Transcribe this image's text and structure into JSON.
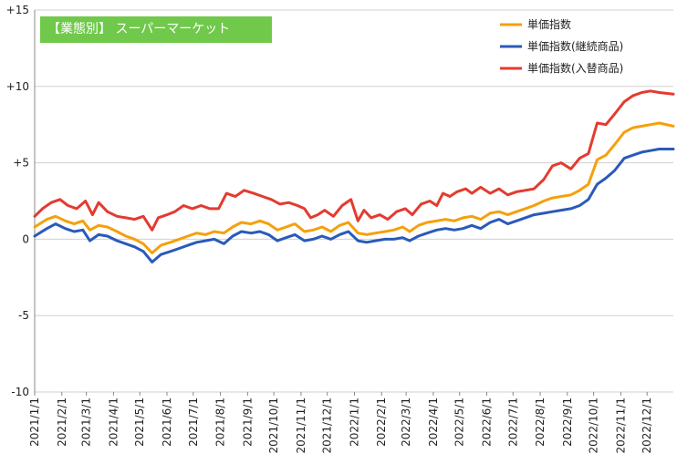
{
  "chart_data": {
    "type": "line",
    "title": "【業態別】 スーパーマーケット",
    "xlabel": "",
    "ylabel": "",
    "ylim": [
      -10,
      15
    ],
    "yticks": [
      {
        "value": 15,
        "label": "+15"
      },
      {
        "value": 10,
        "label": "+10"
      },
      {
        "value": 5,
        "label": "+5"
      },
      {
        "value": 0,
        "label": "0"
      },
      {
        "value": -5,
        "label": "-5"
      },
      {
        "value": -10,
        "label": "-10"
      }
    ],
    "gridlines": "horizontal",
    "legend_position": "top-right",
    "x_start": "2021-01-01",
    "x_end": "2022-12-31",
    "xticks": [
      "2021/1/1",
      "2021/2/1",
      "2021/3/1",
      "2021/4/1",
      "2021/5/1",
      "2021/6/1",
      "2021/7/1",
      "2021/8/1",
      "2021/9/1",
      "2021/10/1",
      "2021/11/1",
      "2021/12/1",
      "2022/1/1",
      "2022/2/1",
      "2022/3/1",
      "2022/4/1",
      "2022/5/1",
      "2022/6/1",
      "2022/7/1",
      "2022/8/1",
      "2022/9/1",
      "2022/10/1",
      "2022/11/1",
      "2022/12/1"
    ],
    "series": [
      {
        "name": "単価指数",
        "color": "#f5a00c",
        "points": [
          [
            "2021-01-01",
            0.8
          ],
          [
            "2021-01-15",
            1.3
          ],
          [
            "2021-01-25",
            1.5
          ],
          [
            "2021-02-05",
            1.2
          ],
          [
            "2021-02-15",
            1.0
          ],
          [
            "2021-02-25",
            1.2
          ],
          [
            "2021-03-05",
            0.6
          ],
          [
            "2021-03-15",
            0.9
          ],
          [
            "2021-03-25",
            0.8
          ],
          [
            "2021-04-05",
            0.5
          ],
          [
            "2021-04-15",
            0.2
          ],
          [
            "2021-04-25",
            0.0
          ],
          [
            "2021-05-05",
            -0.3
          ],
          [
            "2021-05-15",
            -0.9
          ],
          [
            "2021-05-25",
            -0.4
          ],
          [
            "2021-06-05",
            -0.2
          ],
          [
            "2021-06-15",
            0.0
          ],
          [
            "2021-06-25",
            0.2
          ],
          [
            "2021-07-05",
            0.4
          ],
          [
            "2021-07-15",
            0.3
          ],
          [
            "2021-07-25",
            0.5
          ],
          [
            "2021-08-05",
            0.4
          ],
          [
            "2021-08-15",
            0.8
          ],
          [
            "2021-08-25",
            1.1
          ],
          [
            "2021-09-05",
            1.0
          ],
          [
            "2021-09-15",
            1.2
          ],
          [
            "2021-09-25",
            1.0
          ],
          [
            "2021-10-05",
            0.6
          ],
          [
            "2021-10-15",
            0.8
          ],
          [
            "2021-10-25",
            1.0
          ],
          [
            "2021-11-05",
            0.5
          ],
          [
            "2021-11-15",
            0.6
          ],
          [
            "2021-11-25",
            0.8
          ],
          [
            "2021-12-05",
            0.5
          ],
          [
            "2021-12-15",
            0.9
          ],
          [
            "2021-12-25",
            1.1
          ],
          [
            "2022-01-05",
            0.4
          ],
          [
            "2022-01-15",
            0.3
          ],
          [
            "2022-01-25",
            0.4
          ],
          [
            "2022-02-05",
            0.5
          ],
          [
            "2022-02-15",
            0.6
          ],
          [
            "2022-02-25",
            0.8
          ],
          [
            "2022-03-05",
            0.5
          ],
          [
            "2022-03-15",
            0.9
          ],
          [
            "2022-03-25",
            1.1
          ],
          [
            "2022-04-05",
            1.2
          ],
          [
            "2022-04-15",
            1.3
          ],
          [
            "2022-04-25",
            1.2
          ],
          [
            "2022-05-05",
            1.4
          ],
          [
            "2022-05-15",
            1.5
          ],
          [
            "2022-05-25",
            1.3
          ],
          [
            "2022-06-05",
            1.7
          ],
          [
            "2022-06-15",
            1.8
          ],
          [
            "2022-06-25",
            1.6
          ],
          [
            "2022-07-05",
            1.8
          ],
          [
            "2022-07-15",
            2.0
          ],
          [
            "2022-07-25",
            2.2
          ],
          [
            "2022-08-05",
            2.5
          ],
          [
            "2022-08-15",
            2.7
          ],
          [
            "2022-08-25",
            2.8
          ],
          [
            "2022-09-05",
            2.9
          ],
          [
            "2022-09-15",
            3.2
          ],
          [
            "2022-09-25",
            3.6
          ],
          [
            "2022-10-05",
            5.2
          ],
          [
            "2022-10-15",
            5.5
          ],
          [
            "2022-10-25",
            6.2
          ],
          [
            "2022-11-05",
            7.0
          ],
          [
            "2022-11-15",
            7.3
          ],
          [
            "2022-11-25",
            7.4
          ],
          [
            "2022-12-05",
            7.5
          ],
          [
            "2022-12-15",
            7.6
          ],
          [
            "2022-12-31",
            7.4
          ]
        ]
      },
      {
        "name": "単価指数(継続商品)",
        "color": "#2a5ab9",
        "points": [
          [
            "2021-01-01",
            0.2
          ],
          [
            "2021-01-15",
            0.7
          ],
          [
            "2021-01-25",
            1.0
          ],
          [
            "2021-02-05",
            0.7
          ],
          [
            "2021-02-15",
            0.5
          ],
          [
            "2021-02-25",
            0.6
          ],
          [
            "2021-03-05",
            -0.1
          ],
          [
            "2021-03-15",
            0.3
          ],
          [
            "2021-03-25",
            0.2
          ],
          [
            "2021-04-05",
            -0.1
          ],
          [
            "2021-04-15",
            -0.3
          ],
          [
            "2021-04-25",
            -0.5
          ],
          [
            "2021-05-05",
            -0.8
          ],
          [
            "2021-05-15",
            -1.5
          ],
          [
            "2021-05-25",
            -1.0
          ],
          [
            "2021-06-05",
            -0.8
          ],
          [
            "2021-06-15",
            -0.6
          ],
          [
            "2021-06-25",
            -0.4
          ],
          [
            "2021-07-05",
            -0.2
          ],
          [
            "2021-07-15",
            -0.1
          ],
          [
            "2021-07-25",
            0.0
          ],
          [
            "2021-08-05",
            -0.3
          ],
          [
            "2021-08-15",
            0.2
          ],
          [
            "2021-08-25",
            0.5
          ],
          [
            "2021-09-05",
            0.4
          ],
          [
            "2021-09-15",
            0.5
          ],
          [
            "2021-09-25",
            0.3
          ],
          [
            "2021-10-05",
            -0.1
          ],
          [
            "2021-10-15",
            0.1
          ],
          [
            "2021-10-25",
            0.3
          ],
          [
            "2021-11-05",
            -0.1
          ],
          [
            "2021-11-15",
            0.0
          ],
          [
            "2021-11-25",
            0.2
          ],
          [
            "2021-12-05",
            0.0
          ],
          [
            "2021-12-15",
            0.3
          ],
          [
            "2021-12-25",
            0.5
          ],
          [
            "2022-01-05",
            -0.1
          ],
          [
            "2022-01-15",
            -0.2
          ],
          [
            "2022-01-25",
            -0.1
          ],
          [
            "2022-02-05",
            0.0
          ],
          [
            "2022-02-15",
            0.0
          ],
          [
            "2022-02-25",
            0.1
          ],
          [
            "2022-03-05",
            -0.1
          ],
          [
            "2022-03-15",
            0.2
          ],
          [
            "2022-03-25",
            0.4
          ],
          [
            "2022-04-05",
            0.6
          ],
          [
            "2022-04-15",
            0.7
          ],
          [
            "2022-04-25",
            0.6
          ],
          [
            "2022-05-05",
            0.7
          ],
          [
            "2022-05-15",
            0.9
          ],
          [
            "2022-05-25",
            0.7
          ],
          [
            "2022-06-05",
            1.1
          ],
          [
            "2022-06-15",
            1.3
          ],
          [
            "2022-06-25",
            1.0
          ],
          [
            "2022-07-05",
            1.2
          ],
          [
            "2022-07-15",
            1.4
          ],
          [
            "2022-07-25",
            1.6
          ],
          [
            "2022-08-05",
            1.7
          ],
          [
            "2022-08-15",
            1.8
          ],
          [
            "2022-08-25",
            1.9
          ],
          [
            "2022-09-05",
            2.0
          ],
          [
            "2022-09-15",
            2.2
          ],
          [
            "2022-09-25",
            2.6
          ],
          [
            "2022-10-05",
            3.6
          ],
          [
            "2022-10-15",
            4.0
          ],
          [
            "2022-10-25",
            4.5
          ],
          [
            "2022-11-05",
            5.3
          ],
          [
            "2022-11-15",
            5.5
          ],
          [
            "2022-11-25",
            5.7
          ],
          [
            "2022-12-05",
            5.8
          ],
          [
            "2022-12-15",
            5.9
          ],
          [
            "2022-12-31",
            5.9
          ]
        ]
      },
      {
        "name": "単価指数(入替商品)",
        "color": "#e33b30",
        "points": [
          [
            "2021-01-01",
            1.5
          ],
          [
            "2021-01-10",
            2.0
          ],
          [
            "2021-01-20",
            2.4
          ],
          [
            "2021-01-30",
            2.6
          ],
          [
            "2021-02-08",
            2.2
          ],
          [
            "2021-02-18",
            2.0
          ],
          [
            "2021-02-28",
            2.5
          ],
          [
            "2021-03-08",
            1.6
          ],
          [
            "2021-03-15",
            2.4
          ],
          [
            "2021-03-25",
            1.8
          ],
          [
            "2021-04-05",
            1.5
          ],
          [
            "2021-04-15",
            1.4
          ],
          [
            "2021-04-25",
            1.3
          ],
          [
            "2021-05-05",
            1.5
          ],
          [
            "2021-05-15",
            0.6
          ],
          [
            "2021-05-22",
            1.4
          ],
          [
            "2021-06-01",
            1.6
          ],
          [
            "2021-06-10",
            1.8
          ],
          [
            "2021-06-20",
            2.2
          ],
          [
            "2021-06-30",
            2.0
          ],
          [
            "2021-07-10",
            2.2
          ],
          [
            "2021-07-20",
            2.0
          ],
          [
            "2021-07-30",
            2.0
          ],
          [
            "2021-08-08",
            3.0
          ],
          [
            "2021-08-18",
            2.8
          ],
          [
            "2021-08-28",
            3.2
          ],
          [
            "2021-09-08",
            3.0
          ],
          [
            "2021-09-18",
            2.8
          ],
          [
            "2021-09-28",
            2.6
          ],
          [
            "2021-10-08",
            2.3
          ],
          [
            "2021-10-18",
            2.4
          ],
          [
            "2021-10-28",
            2.2
          ],
          [
            "2021-11-05",
            2.0
          ],
          [
            "2021-11-12",
            1.4
          ],
          [
            "2021-11-20",
            1.6
          ],
          [
            "2021-11-28",
            1.9
          ],
          [
            "2021-12-08",
            1.5
          ],
          [
            "2021-12-18",
            2.2
          ],
          [
            "2021-12-28",
            2.6
          ],
          [
            "2022-01-05",
            1.2
          ],
          [
            "2022-01-12",
            1.9
          ],
          [
            "2022-01-20",
            1.4
          ],
          [
            "2022-01-30",
            1.6
          ],
          [
            "2022-02-08",
            1.3
          ],
          [
            "2022-02-18",
            1.8
          ],
          [
            "2022-02-28",
            2.0
          ],
          [
            "2022-03-08",
            1.6
          ],
          [
            "2022-03-18",
            2.3
          ],
          [
            "2022-03-28",
            2.5
          ],
          [
            "2022-04-05",
            2.2
          ],
          [
            "2022-04-12",
            3.0
          ],
          [
            "2022-04-20",
            2.8
          ],
          [
            "2022-04-28",
            3.1
          ],
          [
            "2022-05-08",
            3.3
          ],
          [
            "2022-05-15",
            3.0
          ],
          [
            "2022-05-25",
            3.4
          ],
          [
            "2022-06-05",
            3.0
          ],
          [
            "2022-06-15",
            3.3
          ],
          [
            "2022-06-25",
            2.9
          ],
          [
            "2022-07-05",
            3.1
          ],
          [
            "2022-07-15",
            3.2
          ],
          [
            "2022-07-25",
            3.3
          ],
          [
            "2022-08-05",
            3.9
          ],
          [
            "2022-08-15",
            4.8
          ],
          [
            "2022-08-25",
            5.0
          ],
          [
            "2022-09-05",
            4.6
          ],
          [
            "2022-09-15",
            5.3
          ],
          [
            "2022-09-25",
            5.6
          ],
          [
            "2022-10-05",
            7.6
          ],
          [
            "2022-10-15",
            7.5
          ],
          [
            "2022-10-25",
            8.2
          ],
          [
            "2022-11-05",
            9.0
          ],
          [
            "2022-11-15",
            9.4
          ],
          [
            "2022-11-25",
            9.6
          ],
          [
            "2022-12-05",
            9.7
          ],
          [
            "2022-12-15",
            9.6
          ],
          [
            "2022-12-31",
            9.5
          ]
        ]
      }
    ]
  },
  "colors": {
    "title_bg": "#70c94a",
    "grid": "#d0d0d0",
    "axis": "#888888"
  }
}
